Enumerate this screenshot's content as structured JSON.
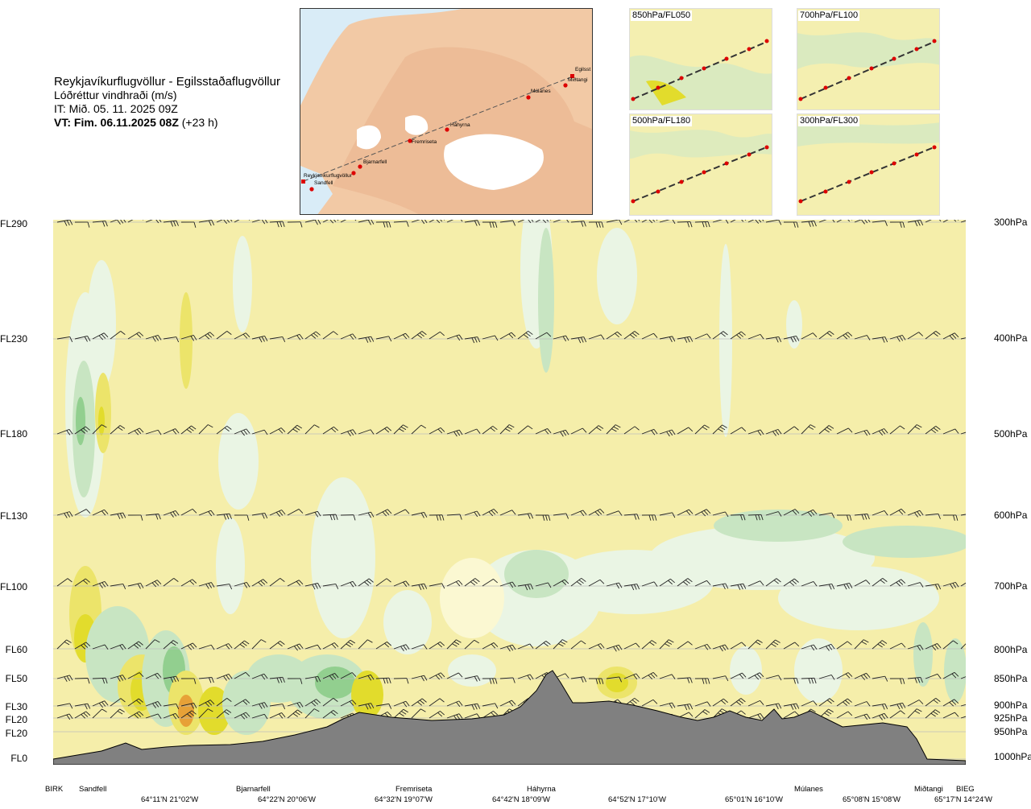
{
  "header": {
    "title": "Reykjavíkurflugvöllur - Egilsstaðaflugvöllur",
    "subtitle": "Lóðréttur vindhraði (m/s)",
    "issue_time": "IT: Mið. 05. 11. 2025 09Z",
    "valid_time": "VT: Fim. 06.11.2025 08Z",
    "valid_offset": "(+23 h)"
  },
  "route_map": {
    "points": [
      {
        "name": "Reykjavíkurflugvöllur"
      },
      {
        "name": "Sandfell"
      },
      {
        "name": "Bjarnarfell"
      },
      {
        "name": "Fremriseta"
      },
      {
        "name": "Háhyrna"
      },
      {
        "name": "Múlanes"
      },
      {
        "name": "Miðtangi"
      },
      {
        "name": "Egilsst"
      }
    ]
  },
  "level_maps": [
    {
      "label": "850hPa/FL050"
    },
    {
      "label": "700hPa/FL100"
    },
    {
      "label": "500hPa/FL180"
    },
    {
      "label": "300hPa/FL300"
    }
  ],
  "chart_data": {
    "type": "heatmap",
    "title": "Lóðréttur vindhraði (m/s)",
    "y_left_ticks": [
      "FL290",
      "FL230",
      "FL180",
      "FL130",
      "FL100",
      "FL60",
      "FL50",
      "FL30",
      "FL20",
      "FL20",
      "FL0"
    ],
    "y_right_ticks": [
      "300hPa",
      "400hPa",
      "500hPa",
      "600hPa",
      "700hPa",
      "800hPa",
      "850hPa",
      "900hPa",
      "925hPa",
      "950hPa",
      "1000hPa"
    ],
    "pressure_levels_hpa": [
      300,
      400,
      500,
      600,
      700,
      800,
      850,
      900,
      925,
      950,
      1000
    ],
    "x_locations": [
      "BIRK",
      "Sandfell",
      "Bjarnarfell",
      "Fremriseta",
      "Háhyrna",
      "Múlanes",
      "Miðtangi",
      "BIEG"
    ],
    "x_coordinates": [
      "64°11'N 21°02'W",
      "64°22'N 20°06'W",
      "64°32'N 19°07'W",
      "64°42'N 18°09'W",
      "64°52'N 17°10'W",
      "65°01'N 16°10'W",
      "65°08'N 15°08'W",
      "65°17'N 14°24'W"
    ],
    "colors": {
      "background_field": "#f5eeaa",
      "strong_updraft": "#e2dc2c",
      "moderate_updraft": "#ece46a",
      "weak_updraft": "#fbf8d2",
      "weak_downdraft": "#eaf5e4",
      "moderate_downdraft": "#c8e5c2",
      "strong_downdraft": "#92cf8f",
      "extreme_updraft": "#e7a137",
      "terrain": "#808080"
    }
  }
}
